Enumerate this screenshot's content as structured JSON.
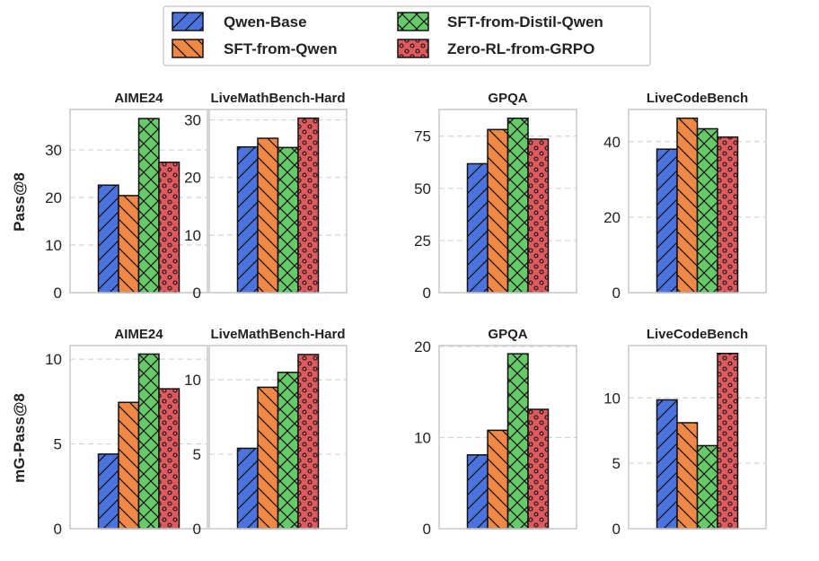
{
  "legend": {
    "position": "top-center",
    "columns": 2,
    "items": [
      {
        "label": "Qwen-Base",
        "color": "#4C72DD",
        "hatch": "diagonal-forward"
      },
      {
        "label": "SFT-from-Qwen",
        "color": "#EE8844",
        "hatch": "diagonal-back"
      },
      {
        "label": "SFT-from-Distil-Qwen",
        "color": "#66C96A",
        "hatch": "cross"
      },
      {
        "label": "Zero-RL-from-GRPO",
        "color": "#DD5A5E",
        "hatch": "circles"
      }
    ]
  },
  "row_labels": [
    "Pass@8",
    "mG-Pass@8"
  ],
  "chart_data": [
    {
      "type": "bar",
      "row": 0,
      "title": "AIME24",
      "ylabel": "Pass@8",
      "categories": [
        "Qwen-Base",
        "SFT-from-Qwen",
        "SFT-from-Distil-Qwen",
        "Zero-RL-from-GRPO"
      ],
      "values": [
        22.6,
        20.4,
        36.6,
        27.4
      ],
      "ylim": [
        0,
        38.5
      ],
      "yticks": [
        0,
        10,
        20,
        30
      ],
      "grid": "y-dashed"
    },
    {
      "type": "bar",
      "row": 0,
      "title": "LiveMathBench-Hard",
      "ylabel": "",
      "categories": [
        "Qwen-Base",
        "SFT-from-Qwen",
        "SFT-from-Distil-Qwen",
        "Zero-RL-from-GRPO"
      ],
      "values": [
        25.3,
        26.8,
        25.2,
        30.3
      ],
      "ylim": [
        0,
        31.8
      ],
      "yticks": [
        0,
        10,
        20,
        30
      ],
      "grid": "y-dashed"
    },
    {
      "type": "bar",
      "row": 0,
      "title": "GPQA",
      "ylabel": "",
      "categories": [
        "Qwen-Base",
        "SFT-from-Qwen",
        "SFT-from-Distil-Qwen",
        "Zero-RL-from-GRPO"
      ],
      "values": [
        61.8,
        78.2,
        83.6,
        73.6
      ],
      "ylim": [
        0,
        87.8
      ],
      "yticks": [
        0,
        25,
        50,
        75
      ],
      "grid": "y-dashed"
    },
    {
      "type": "bar",
      "row": 0,
      "title": "LiveCodeBench",
      "ylabel": "",
      "categories": [
        "Qwen-Base",
        "SFT-from-Qwen",
        "SFT-from-Distil-Qwen",
        "Zero-RL-from-GRPO"
      ],
      "values": [
        38.0,
        46.2,
        43.4,
        41.2
      ],
      "ylim": [
        0,
        48.5
      ],
      "yticks": [
        0,
        20,
        40
      ],
      "grid": "y-dashed"
    },
    {
      "type": "bar",
      "row": 1,
      "title": "AIME24",
      "ylabel": "mG-Pass@8",
      "categories": [
        "Qwen-Base",
        "SFT-from-Qwen",
        "SFT-from-Distil-Qwen",
        "Zero-RL-from-GRPO"
      ],
      "values": [
        4.4,
        7.45,
        10.3,
        8.25
      ],
      "ylim": [
        0,
        10.8
      ],
      "yticks": [
        0,
        5,
        10
      ],
      "grid": "y-dashed"
    },
    {
      "type": "bar",
      "row": 1,
      "title": "LiveMathBench-Hard",
      "ylabel": "",
      "categories": [
        "Qwen-Base",
        "SFT-from-Qwen",
        "SFT-from-Distil-Qwen",
        "Zero-RL-from-GRPO"
      ],
      "values": [
        5.4,
        9.5,
        10.5,
        11.7
      ],
      "ylim": [
        0,
        12.3
      ],
      "yticks": [
        0,
        5,
        10
      ],
      "grid": "y-dashed"
    },
    {
      "type": "bar",
      "row": 1,
      "title": "GPQA",
      "ylabel": "",
      "categories": [
        "Qwen-Base",
        "SFT-from-Qwen",
        "SFT-from-Distil-Qwen",
        "Zero-RL-from-GRPO"
      ],
      "values": [
        8.1,
        10.8,
        19.2,
        13.1
      ],
      "ylim": [
        0,
        20.1
      ],
      "yticks": [
        0,
        10,
        20
      ],
      "grid": "y-dashed"
    },
    {
      "type": "bar",
      "row": 1,
      "title": "LiveCodeBench",
      "ylabel": "",
      "categories": [
        "Qwen-Base",
        "SFT-from-Qwen",
        "SFT-from-Distil-Qwen",
        "Zero-RL-from-GRPO"
      ],
      "values": [
        9.85,
        8.1,
        6.35,
        13.4
      ],
      "ylim": [
        0,
        14.0
      ],
      "yticks": [
        0,
        5,
        10
      ],
      "grid": "y-dashed"
    }
  ]
}
